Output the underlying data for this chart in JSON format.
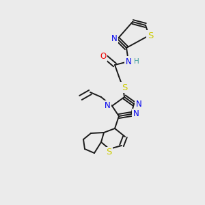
{
  "bg_color": "#ebebeb",
  "atom_colors": {
    "S": "#cccc00",
    "N": "#0000ee",
    "O": "#ee0000",
    "H": "#3a9a9a",
    "C": "#000000"
  },
  "bond_color": "#1a1a1a",
  "bond_width": 1.4,
  "font_size_atom": 8.5
}
